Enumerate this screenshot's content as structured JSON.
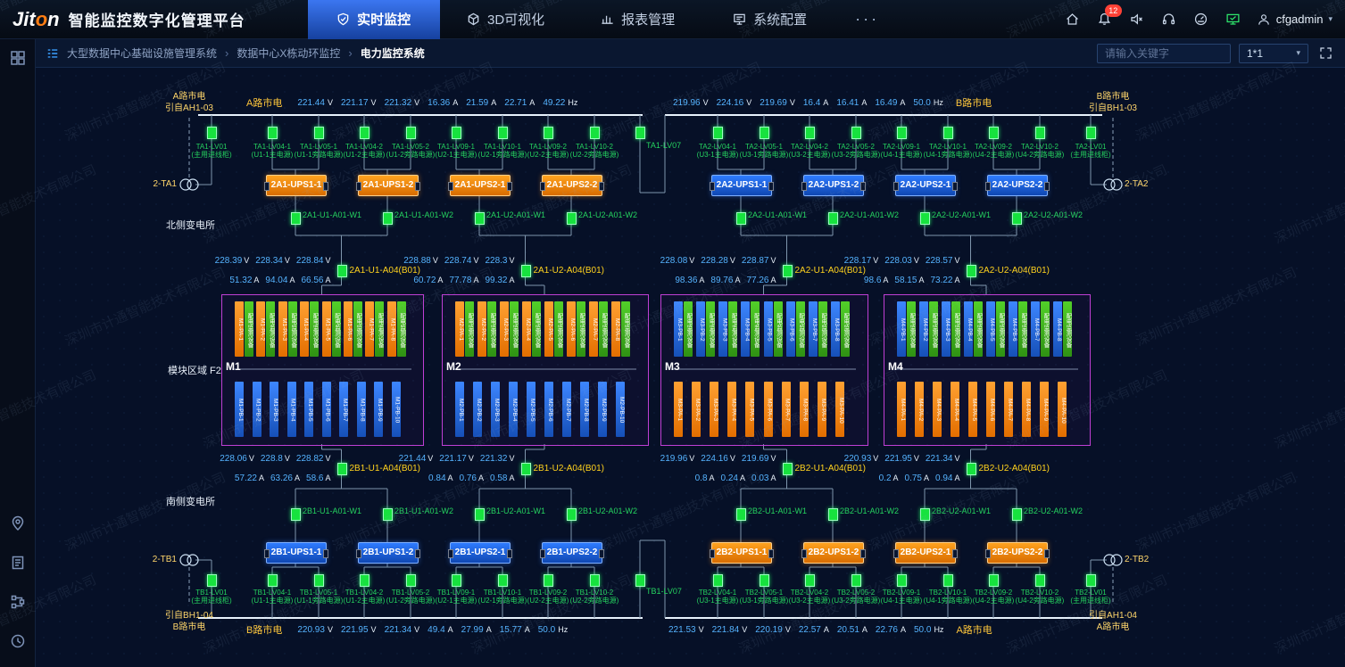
{
  "header": {
    "logo": {
      "pre": "Jit",
      "o": "o",
      "post": "n"
    },
    "title": "智能监控数字化管理平台",
    "tabs": [
      {
        "label": "实时监控",
        "active": true
      },
      {
        "label": "3D可视化",
        "active": false
      },
      {
        "label": "报表管理",
        "active": false
      },
      {
        "label": "系统配置",
        "active": false
      }
    ],
    "more_label": "···",
    "alarm_badge": "12",
    "username": "cfgadmin",
    "caret": "▾"
  },
  "breadcrumb": {
    "items": [
      "大型数据中心基础设施管理系统",
      "数据中心X栋动环监控",
      "电力监控系统"
    ],
    "separator": "›",
    "search_placeholder": "请输入关键字",
    "layout_select": "1*1",
    "caret": "▾"
  },
  "watermark_text": "深圳市计通智能技术有限公司",
  "diagram": {
    "units": {
      "volt": "V",
      "amp": "A",
      "freq": "Hz"
    },
    "labels": {
      "north_substation": "北侧变电所",
      "south_substation": "南侧变电所",
      "module_area": "模块区域 F2"
    },
    "feeds": {
      "top_left": {
        "source": [
          "A路市电",
          "引自AH1-03"
        ],
        "bus_label": "A路市电",
        "volts": [
          "221.44",
          "221.17",
          "221.32"
        ],
        "amps": [
          "16.36",
          "21.59",
          "22.71"
        ],
        "freq": "49.22"
      },
      "top_right": {
        "source": [
          "B路市电",
          "引自BH1-03"
        ],
        "bus_label": "B路市电",
        "volts": [
          "219.96",
          "224.16",
          "219.69"
        ],
        "amps": [
          "16.4",
          "16.41",
          "16.49"
        ],
        "freq": "50.0"
      },
      "bottom_left": {
        "source": [
          "引自BH1-04",
          "B路市电"
        ],
        "bus_label": "B路市电",
        "volts": [
          "220.93",
          "221.95",
          "221.34"
        ],
        "amps": [
          "49.4",
          "27.99",
          "15.77"
        ],
        "freq": "50.0"
      },
      "bottom_right": {
        "source": [
          "引自AH1-04",
          "A路市电"
        ],
        "bus_label": "A路市电",
        "volts": [
          "221.53",
          "221.84",
          "220.19"
        ],
        "amps": [
          "22.57",
          "20.51",
          "22.76"
        ],
        "freq": "50.0"
      }
    },
    "north": {
      "left": {
        "transformer": "2-TA1",
        "entry": {
          "name": "TA1-LV01",
          "desc": "(主用进线柜)"
        },
        "tie": {
          "name": "TA1-LV07"
        },
        "feeders": [
          {
            "name": "TA1-LV04-1",
            "desc": "(U1-1主电源)"
          },
          {
            "name": "TA1-LV05-1",
            "desc": "(U1-1旁路电源)"
          },
          {
            "name": "TA1-LV04-2",
            "desc": "(U1-2主电源)"
          },
          {
            "name": "TA1-LV05-2",
            "desc": "(U1-2旁路电源)"
          },
          {
            "name": "TA1-LV09-1",
            "desc": "(U2-1主电源)"
          },
          {
            "name": "TA1-LV10-1",
            "desc": "(U2-1旁路电源)"
          },
          {
            "name": "TA1-LV09-2",
            "desc": "(U2-2主电源)"
          },
          {
            "name": "TA1-LV10-2",
            "desc": "(U2-2旁路电源)"
          }
        ],
        "ups_color": "orange",
        "ups": [
          "2A1-UPS1-1",
          "2A1-UPS1-2",
          "2A1-UPS2-1",
          "2A1-UPS2-2"
        ],
        "output_breakers": [
          "2A1-U1-A01-W1",
          "2A1-U1-A01-W2",
          "2A1-U2-A01-W1",
          "2A1-U2-A01-W2"
        ],
        "meters": [
          {
            "volts": [
              "228.39",
              "228.34",
              "228.84"
            ],
            "amps": [
              "51.32",
              "94.04",
              "66.56"
            ],
            "label": "2A1-U1-A04(B01)"
          },
          {
            "volts": [
              "228.88",
              "228.74",
              "228.3"
            ],
            "amps": [
              "60.72",
              "77.78",
              "99.32"
            ],
            "label": "2A1-U2-A04(B01)"
          }
        ]
      },
      "right": {
        "transformer": "2-TA2",
        "entry": {
          "name": "TA2-LV01",
          "desc": "(主用进线柜)"
        },
        "feeders": [
          {
            "name": "TA2-LV04-1",
            "desc": "(U3-1主电源)"
          },
          {
            "name": "TA2-LV05-1",
            "desc": "(U3-1旁路电源)"
          },
          {
            "name": "TA2-LV04-2",
            "desc": "(U3-2主电源)"
          },
          {
            "name": "TA2-LV05-2",
            "desc": "(U3-2旁路电源)"
          },
          {
            "name": "TA2-LV09-1",
            "desc": "(U4-1主电源)"
          },
          {
            "name": "TA2-LV10-1",
            "desc": "(U4-1旁路电源)"
          },
          {
            "name": "TA2-LV09-2",
            "desc": "(U4-2主电源)"
          },
          {
            "name": "TA2-LV10-2",
            "desc": "(U4-2旁路电源)"
          }
        ],
        "ups_color": "blue",
        "ups": [
          "2A2-UPS1-1",
          "2A2-UPS1-2",
          "2A2-UPS2-1",
          "2A2-UPS2-2"
        ],
        "output_breakers": [
          "2A2-U1-A01-W1",
          "2A2-U1-A01-W2",
          "2A2-U2-A01-W1",
          "2A2-U2-A01-W2"
        ],
        "meters": [
          {
            "volts": [
              "228.08",
              "228.28",
              "228.87"
            ],
            "amps": [
              "98.36",
              "89.76",
              "77.26"
            ],
            "label": "2A2-U1-A04(B01)"
          },
          {
            "volts": [
              "228.17",
              "228.03",
              "228.57"
            ],
            "amps": [
              "98.6",
              "58.15",
              "73.22"
            ],
            "label": "2A2-U2-A04(B01)"
          }
        ]
      }
    },
    "south": {
      "left": {
        "transformer": "2-TB1",
        "entry": {
          "name": "TB1-LV01",
          "desc": "(主用进线柜)"
        },
        "tie": {
          "name": "TB1-LV07"
        },
        "feeders": [
          {
            "name": "TB1-LV04-1",
            "desc": "(U1-1主电源)"
          },
          {
            "name": "TB1-LV05-1",
            "desc": "(U1-1旁路电源)"
          },
          {
            "name": "TB1-LV04-2",
            "desc": "(U1-2主电源)"
          },
          {
            "name": "TB1-LV05-2",
            "desc": "(U1-2旁路电源)"
          },
          {
            "name": "TB1-LV09-1",
            "desc": "(U2-1主电源)"
          },
          {
            "name": "TB1-LV10-1",
            "desc": "(U2-1旁路电源)"
          },
          {
            "name": "TB1-LV09-2",
            "desc": "(U2-2主电源)"
          },
          {
            "name": "TB1-LV10-2",
            "desc": "(U2-2旁路电源)"
          }
        ],
        "ups_color": "blue",
        "ups": [
          "2B1-UPS1-1",
          "2B1-UPS1-2",
          "2B1-UPS2-1",
          "2B1-UPS2-2"
        ],
        "output_breakers": [
          "2B1-U1-A01-W1",
          "2B1-U1-A01-W2",
          "2B1-U2-A01-W1",
          "2B1-U2-A01-W2"
        ],
        "meters": [
          {
            "volts": [
              "228.06",
              "228.8",
              "228.82"
            ],
            "amps": [
              "57.22",
              "63.26",
              "58.6"
            ],
            "label": "2B1-U1-A04(B01)"
          },
          {
            "volts": [
              "221.44",
              "221.17",
              "221.32"
            ],
            "amps": [
              "0.84",
              "0.76",
              "0.58"
            ],
            "label": "2B1-U2-A04(B01)"
          }
        ]
      },
      "right": {
        "transformer": "2-TB2",
        "entry": {
          "name": "TB2-LV01",
          "desc": "(主用进线柜)"
        },
        "feeders": [
          {
            "name": "TB2-LV04-1",
            "desc": "(U3-1主电源)"
          },
          {
            "name": "TB2-LV05-1",
            "desc": "(U3-1旁路电源)"
          },
          {
            "name": "TB2-LV04-2",
            "desc": "(U3-2主电源)"
          },
          {
            "name": "TB2-LV05-2",
            "desc": "(U3-2旁路电源)"
          },
          {
            "name": "TB2-LV09-1",
            "desc": "(U4-1主电源)"
          },
          {
            "name": "TB2-LV10-1",
            "desc": "(U4-1旁路电源)"
          },
          {
            "name": "TB2-LV09-2",
            "desc": "(U4-2主电源)"
          },
          {
            "name": "TB2-LV10-2",
            "desc": "(U4-2旁路电源)"
          }
        ],
        "ups_color": "orange",
        "ups": [
          "2B2-UPS1-1",
          "2B2-UPS1-2",
          "2B2-UPS2-1",
          "2B2-UPS2-2"
        ],
        "output_breakers": [
          "2B2-U1-A01-W1",
          "2B2-U1-A01-W2",
          "2B2-U2-A01-W1",
          "2B2-U2-A01-W2"
        ],
        "meters": [
          {
            "volts": [
              "219.96",
              "224.16",
              "219.69"
            ],
            "amps": [
              "0.8",
              "0.24",
              "0.03"
            ],
            "label": "2B2-U1-A04(B01)"
          },
          {
            "volts": [
              "220.93",
              "221.95",
              "221.34"
            ],
            "amps": [
              "0.2",
              "0.75",
              "0.94"
            ],
            "label": "2B2-U2-A04(B01)"
          }
        ]
      }
    },
    "modules": [
      {
        "name": "M1",
        "top_color": "orange",
        "top_prefix": "M1-PA-",
        "top_count": 8,
        "bottom_color": "blue",
        "bottom_prefix": "M1-PB-",
        "bottom_count": 10,
        "monitor_label": "配电监测设备"
      },
      {
        "name": "M2",
        "top_color": "orange",
        "top_prefix": "M2-PA-",
        "top_count": 8,
        "bottom_color": "blue",
        "bottom_prefix": "M2-PB-",
        "bottom_count": 10,
        "monitor_label": "配电监测设备"
      },
      {
        "name": "M3",
        "top_color": "blue",
        "top_prefix": "M3-PB-",
        "top_count": 8,
        "bottom_color": "orange",
        "bottom_prefix": "M3-PA-",
        "bottom_count": 10,
        "monitor_label": "配电监测设备"
      },
      {
        "name": "M4",
        "top_color": "blue",
        "top_prefix": "M4-PB-",
        "top_count": 8,
        "bottom_color": "orange",
        "bottom_prefix": "M4-PA-",
        "bottom_count": 10,
        "monitor_label": "配电监测设备"
      }
    ]
  }
}
